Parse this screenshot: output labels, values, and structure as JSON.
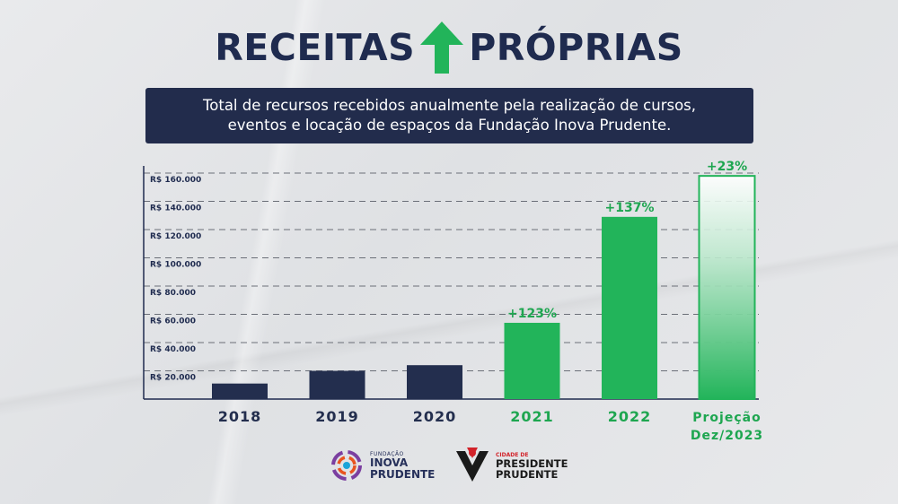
{
  "header": {
    "title_left": "RECEITAS",
    "title_right": "PRÓPRIAS",
    "subtitle_line1": "Total de recursos recebidos anualmente pela realização de cursos,",
    "subtitle_line2": "eventos e locação de espaços da Fundação Inova Prudente."
  },
  "colors": {
    "navy": "#232e4e",
    "green": "#22b45a",
    "green_text": "#1ea650"
  },
  "chart_data": {
    "type": "bar",
    "categories": [
      "2018",
      "2019",
      "2020",
      "2021",
      "2022",
      "Projeção Dez/2023"
    ],
    "category_lines": [
      [
        "2018"
      ],
      [
        "2019"
      ],
      [
        "2020"
      ],
      [
        "2021"
      ],
      [
        "2022"
      ],
      [
        "Projeção",
        "Dez/2023"
      ]
    ],
    "values": [
      11000,
      20000,
      24000,
      54000,
      129000,
      158000
    ],
    "bar_colors": [
      "navy",
      "navy",
      "navy",
      "green",
      "green",
      "green-fade"
    ],
    "annotations": [
      "",
      "",
      "",
      "+123%",
      "+137%",
      "+23%"
    ],
    "y_ticks": [
      20000,
      40000,
      60000,
      80000,
      100000,
      120000,
      140000,
      160000
    ],
    "y_tick_labels": [
      "R$ 20.000",
      "R$ 40.000",
      "R$ 60.000",
      "R$ 80.000",
      "R$ 100.000",
      "R$ 120.000",
      "R$ 140.000",
      "R$ 160.000"
    ],
    "ylim": [
      0,
      160000
    ],
    "grid": true,
    "grid_style": "dashed",
    "legend": "none"
  },
  "footer": {
    "logo1_small": "FUNDAÇÃO",
    "logo1_line1": "INOVA",
    "logo1_line2": "PRUDENTE",
    "logo2_small": "CIDADE DE",
    "logo2_line1": "PRESIDENTE",
    "logo2_line2": "PRUDENTE"
  }
}
